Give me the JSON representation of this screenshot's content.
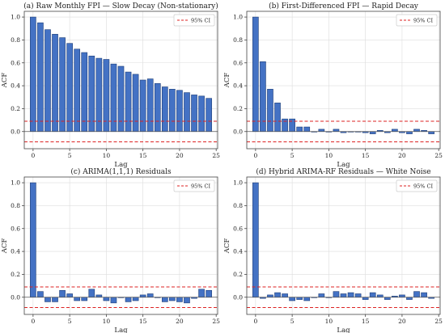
{
  "colors": {
    "bar": "#4472c4",
    "bar_edge": "#1f3f78",
    "ci_line": "#dd2222",
    "zero_line": "#555555",
    "frame": "#444444",
    "grid": "#dddddd"
  },
  "chart_data": [
    {
      "type": "bar",
      "title": "(a) Raw Monthly FPI — Slow Decay (Non-stationary)",
      "xlabel": "Lag",
      "ylabel": "ACF",
      "x": [
        0,
        1,
        2,
        3,
        4,
        5,
        6,
        7,
        8,
        9,
        10,
        11,
        12,
        13,
        14,
        15,
        16,
        17,
        18,
        19,
        20,
        21,
        22,
        23,
        24
      ],
      "values": [
        1.0,
        0.95,
        0.89,
        0.85,
        0.82,
        0.77,
        0.72,
        0.69,
        0.66,
        0.64,
        0.63,
        0.59,
        0.57,
        0.52,
        0.5,
        0.45,
        0.46,
        0.42,
        0.39,
        0.37,
        0.36,
        0.34,
        0.32,
        0.31,
        0.29
      ],
      "ci": 0.09,
      "legend_label": "95% CI",
      "xlim": [
        -1.2,
        25.2
      ],
      "ylim": [
        -0.15,
        1.05
      ],
      "xticks": [
        0,
        5,
        10,
        15,
        20,
        25
      ],
      "yticks": [
        0.0,
        0.2,
        0.4,
        0.6,
        0.8,
        1.0
      ],
      "ytick_labels": [
        "0.0",
        "0.2",
        "0.4",
        "0.6",
        "0.8",
        "1.0"
      ],
      "grid": true,
      "legend_position": "top-right"
    },
    {
      "type": "bar",
      "title": "(b) First-Differenced FPI — Rapid Decay",
      "xlabel": "Lag",
      "ylabel": "ACF",
      "x": [
        0,
        1,
        2,
        3,
        4,
        5,
        6,
        7,
        8,
        9,
        10,
        11,
        12,
        13,
        14,
        15,
        16,
        17,
        18,
        19,
        20,
        21,
        22,
        23,
        24
      ],
      "values": [
        1.0,
        0.61,
        0.37,
        0.25,
        0.11,
        0.11,
        0.04,
        0.04,
        0.0,
        0.02,
        0.0,
        0.02,
        -0.01,
        0.0,
        0.0,
        -0.01,
        -0.02,
        0.01,
        -0.01,
        0.02,
        -0.01,
        -0.02,
        0.02,
        0.01,
        -0.02
      ],
      "ci": 0.09,
      "legend_label": "95% CI",
      "xlim": [
        -1.2,
        25.2
      ],
      "ylim": [
        -0.15,
        1.05
      ],
      "xticks": [
        0,
        5,
        10,
        15,
        20,
        25
      ],
      "yticks": [
        0.0,
        0.2,
        0.4,
        0.6,
        0.8,
        1.0
      ],
      "ytick_labels": [
        "0.0",
        "0.2",
        "0.4",
        "0.6",
        "0.8",
        "1.0"
      ],
      "grid": true,
      "legend_position": "top-right"
    },
    {
      "type": "bar",
      "title": "(c) ARIMA(1,1,1) Residuals",
      "xlabel": "Lag",
      "ylabel": "ACF",
      "x": [
        0,
        1,
        2,
        3,
        4,
        5,
        6,
        7,
        8,
        9,
        10,
        11,
        12,
        13,
        14,
        15,
        16,
        17,
        18,
        19,
        20,
        21,
        22,
        23,
        24
      ],
      "values": [
        1.0,
        0.05,
        -0.04,
        -0.04,
        0.06,
        0.03,
        -0.03,
        -0.03,
        0.07,
        0.02,
        -0.03,
        -0.05,
        0.0,
        -0.04,
        -0.03,
        0.02,
        0.03,
        0.0,
        -0.04,
        -0.03,
        -0.04,
        -0.05,
        -0.01,
        0.07,
        0.06
      ],
      "ci": 0.09,
      "legend_label": "95% CI",
      "xlim": [
        -1.2,
        25.2
      ],
      "ylim": [
        -0.15,
        1.05
      ],
      "xticks": [
        0,
        5,
        10,
        15,
        20,
        25
      ],
      "yticks": [
        0.0,
        0.2,
        0.4,
        0.6,
        0.8,
        1.0
      ],
      "ytick_labels": [
        "0.0",
        "0.2",
        "0.4",
        "0.6",
        "0.8",
        "1.0"
      ],
      "grid": true,
      "legend_position": "top-right"
    },
    {
      "type": "bar",
      "title": "(d) Hybrid ARIMA-RF Residuals — White Noise",
      "xlabel": "Lag",
      "ylabel": "ACF",
      "x": [
        0,
        1,
        2,
        3,
        4,
        5,
        6,
        7,
        8,
        9,
        10,
        11,
        12,
        13,
        14,
        15,
        16,
        17,
        18,
        19,
        20,
        21,
        22,
        23,
        24
      ],
      "values": [
        1.0,
        -0.01,
        0.02,
        0.04,
        0.03,
        -0.03,
        -0.02,
        -0.03,
        0.0,
        0.03,
        0.0,
        0.05,
        0.03,
        0.04,
        0.03,
        -0.02,
        0.04,
        0.02,
        -0.02,
        0.01,
        0.02,
        -0.02,
        0.05,
        0.04,
        -0.01
      ],
      "ci": 0.09,
      "legend_label": "95% CI",
      "xlim": [
        -1.2,
        25.2
      ],
      "ylim": [
        -0.15,
        1.05
      ],
      "xticks": [
        0,
        5,
        10,
        15,
        20,
        25
      ],
      "yticks": [
        0.0,
        0.2,
        0.4,
        0.6,
        0.8,
        1.0
      ],
      "ytick_labels": [
        "0.0",
        "0.2",
        "0.4",
        "0.6",
        "0.8",
        "1.0"
      ],
      "grid": true,
      "legend_position": "top-right"
    }
  ]
}
